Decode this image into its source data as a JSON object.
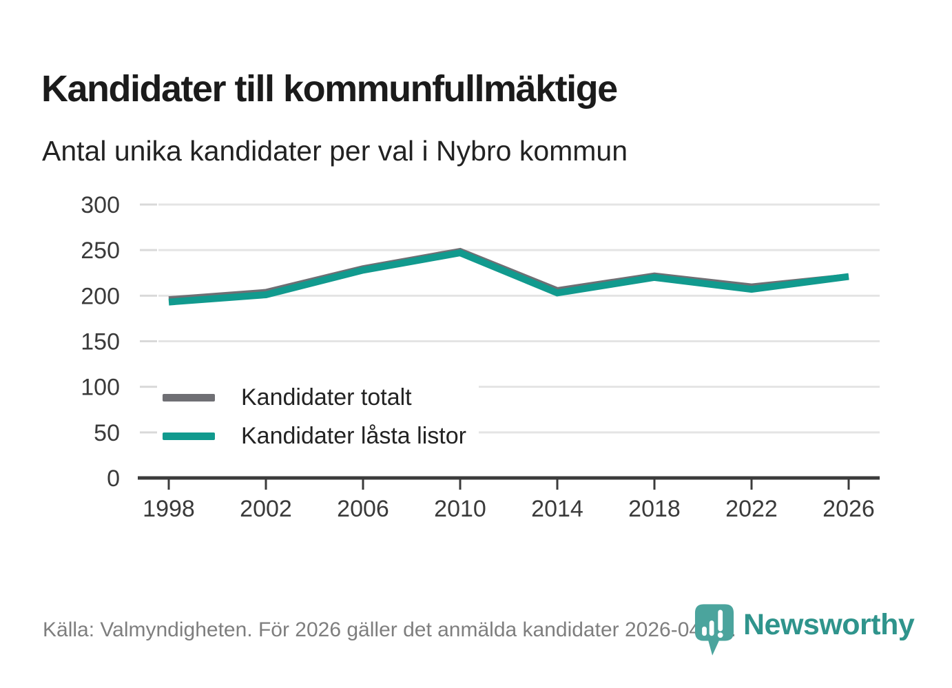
{
  "page": {
    "title": "Kandidater till kommunfullmäktige",
    "subtitle": "Antal unika kandidater per val i Nybro kommun",
    "source": "Källa: Valmyndigheten. För 2026 gäller det anmälda kandidater 2026-04-10.",
    "background_color": "#ffffff"
  },
  "branding": {
    "logo_text": "Newsworthy",
    "logo_icon": "newsworthy-pin-barchart-icon",
    "logo_text_color": "#2f948c",
    "logo_pin_color": "#4ba49d"
  },
  "colors": {
    "grid": "#e4e4e4",
    "tick": "#d9d9d9",
    "axis": "#3b3b3b",
    "axis_text": "#3a3a3a",
    "series_total": "#6f6f74",
    "series_locked": "#119a8e"
  },
  "chart_data": {
    "type": "line",
    "title": "Kandidater till kommunfullmäktige",
    "subtitle": "Antal unika kandidater per val i Nybro kommun",
    "categories": [
      "1998",
      "2002",
      "2006",
      "2010",
      "2014",
      "2018",
      "2022",
      "2026"
    ],
    "series": [
      {
        "name": "Kandidater totalt",
        "color": "#6f6f74",
        "values": [
          196,
          204,
          230,
          249,
          206,
          222,
          210,
          221
        ]
      },
      {
        "name": "Kandidater låsta listor",
        "color": "#119a8e",
        "values": [
          193,
          201,
          228,
          247,
          203,
          220,
          207,
          221
        ]
      }
    ],
    "xlabel": "",
    "ylabel": "",
    "ylim": [
      0,
      300
    ],
    "yticks": [
      0,
      50,
      100,
      150,
      200,
      250,
      300
    ],
    "grid": "horizontal",
    "legend_position": "inside-left-middle"
  }
}
